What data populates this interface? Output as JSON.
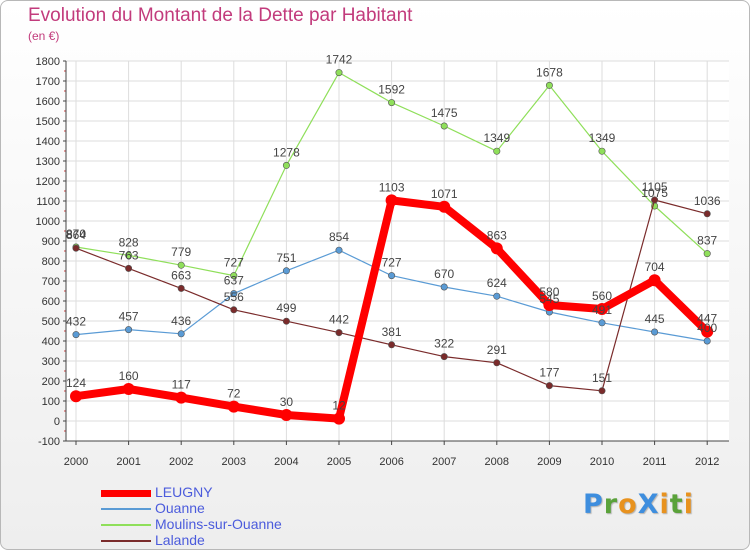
{
  "header": {
    "title": "Evolution du Montant de la Dette par Habitant",
    "subtitle": "(en €)"
  },
  "logo": {
    "text": "ProXiti",
    "letters": [
      {
        "ch": "P",
        "color": "#3e8ede"
      },
      {
        "ch": "r",
        "color": "#5aa23a"
      },
      {
        "ch": "o",
        "color": "#e8921e"
      },
      {
        "ch": "X",
        "color": "#3e8ede"
      },
      {
        "ch": "i",
        "color": "#e8921e"
      },
      {
        "ch": "t",
        "color": "#5aa23a"
      },
      {
        "ch": "i",
        "color": "#e8921e"
      }
    ]
  },
  "chart_data": {
    "type": "line",
    "title": "Evolution du Montant de la Dette par Habitant",
    "subtitle": "(en €)",
    "x": [
      "2000",
      "2001",
      "2002",
      "2003",
      "2004",
      "2005",
      "2006",
      "2007",
      "2008",
      "2009",
      "2010",
      "2011",
      "2012"
    ],
    "ylim": [
      -100,
      1800
    ],
    "yticks": [
      -100,
      0,
      100,
      200,
      300,
      400,
      500,
      600,
      700,
      800,
      900,
      1000,
      1100,
      1200,
      1300,
      1400,
      1500,
      1600,
      1700,
      1800
    ],
    "grid": true,
    "legend_position": "bottom-left",
    "series": [
      {
        "name": "LEUGNY",
        "color": "#ff0000",
        "values": [
          124,
          160,
          117,
          72,
          30,
          12,
          1103,
          1071,
          863,
          580,
          560,
          704,
          447
        ]
      },
      {
        "name": "Ouanne",
        "color": "#5a9bd5",
        "values": [
          432,
          457,
          436,
          637,
          751,
          854,
          727,
          670,
          624,
          545,
          491,
          445,
          400
        ]
      },
      {
        "name": "Moulins-sur-Ouanne",
        "color": "#8fdf5a",
        "values": [
          870,
          828,
          779,
          727,
          1278,
          1742,
          1592,
          1475,
          1349,
          1678,
          1349,
          1075,
          837
        ]
      },
      {
        "name": "Lalande",
        "color": "#7a2b2b",
        "values": [
          864,
          763,
          663,
          556,
          499,
          442,
          381,
          322,
          291,
          177,
          151,
          1105,
          1036
        ]
      }
    ]
  }
}
